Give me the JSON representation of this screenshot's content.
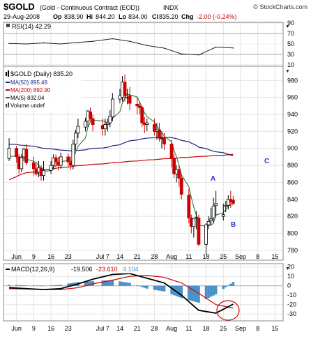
{
  "header": {
    "symbol": "$GOLD",
    "name": "(Gold - Continuous Contract (EOD))",
    "exchange": "INDX",
    "source": "© StockCharts.com",
    "date": "29-Aug-2008",
    "op_label": "Op",
    "op": "838.90",
    "hi_label": "Hi",
    "hi": "844.20",
    "lo_label": "Lo",
    "lo": "834.00",
    "cl_label": "Cl",
    "cl": "835.20",
    "chg_label": "Chg",
    "chg": "-2.00 (-0.24%)"
  },
  "rsi_panel": {
    "label": "RSI(14) 42.29",
    "ticks": [
      "90",
      "70",
      "50",
      "30",
      "10"
    ]
  },
  "price_panel": {
    "legend": [
      {
        "text": "$GOLD (Daily) 835.20",
        "color": "#000000",
        "marker": "candle"
      },
      {
        "text": "MA(50) 895.49",
        "color": "#1a237e",
        "marker": "line"
      },
      {
        "text": "MA(200) 892.90",
        "color": "#cc0000",
        "marker": "line"
      },
      {
        "text": "MA(5) 832.04",
        "color": "#207020",
        "marker": "line"
      },
      {
        "text": "Volume undef",
        "color": "#000000",
        "marker": "bars"
      }
    ],
    "annotations": [
      "A",
      "B",
      "C"
    ]
  },
  "macd_panel": {
    "label_name": "MACD(12,26,9)",
    "macd": "-19.506",
    "signal": "-23.610",
    "hist": "4.104",
    "ticks": [
      "20",
      "10",
      "0",
      "-10",
      "-20",
      "-30"
    ]
  },
  "x_axis_labels": [
    "Jun",
    "9",
    "16",
    "23",
    "Jul 7",
    "14",
    "21",
    "28",
    "Aug",
    "11",
    "18",
    "25",
    "Sep",
    "8",
    "15"
  ],
  "colors": {
    "up": "#000000",
    "down": "#cc0000",
    "ma50": "#1a237e",
    "ma200": "#cc0000",
    "ma5": "#207020",
    "hist": "#4a90c8",
    "signal": "#cc0000",
    "annot": "#2233cc"
  },
  "chart_data": [
    {
      "type": "line",
      "name": "RSI(14)",
      "x": [
        "2008-05-30",
        "2008-06-06",
        "2008-06-13",
        "2008-06-20",
        "2008-06-27",
        "2008-07-03",
        "2008-07-11",
        "2008-07-18",
        "2008-07-25",
        "2008-08-01",
        "2008-08-08",
        "2008-08-15",
        "2008-08-22",
        "2008-08-29"
      ],
      "values": [
        51,
        50,
        52,
        50,
        53,
        55,
        60,
        55,
        47,
        42,
        31,
        29,
        44,
        42.29
      ],
      "ylim": [
        10,
        90
      ],
      "levels": [
        70,
        50,
        30
      ]
    },
    {
      "type": "candlestick",
      "title": "$GOLD (Daily)",
      "ylim": [
        770,
        995
      ],
      "yticks": [
        780,
        800,
        820,
        840,
        860,
        880,
        900,
        920,
        940,
        960,
        980
      ],
      "x": [
        "2008-05-30",
        "2008-06-02",
        "2008-06-03",
        "2008-06-04",
        "2008-06-05",
        "2008-06-06",
        "2008-06-09",
        "2008-06-10",
        "2008-06-11",
        "2008-06-12",
        "2008-06-13",
        "2008-06-16",
        "2008-06-17",
        "2008-06-18",
        "2008-06-19",
        "2008-06-20",
        "2008-06-23",
        "2008-06-24",
        "2008-06-25",
        "2008-06-26",
        "2008-06-27",
        "2008-06-30",
        "2008-07-01",
        "2008-07-02",
        "2008-07-03",
        "2008-07-07",
        "2008-07-08",
        "2008-07-09",
        "2008-07-10",
        "2008-07-11",
        "2008-07-14",
        "2008-07-15",
        "2008-07-16",
        "2008-07-17",
        "2008-07-18",
        "2008-07-21",
        "2008-07-22",
        "2008-07-23",
        "2008-07-24",
        "2008-07-25",
        "2008-07-28",
        "2008-07-29",
        "2008-07-30",
        "2008-07-31",
        "2008-08-01",
        "2008-08-04",
        "2008-08-05",
        "2008-08-06",
        "2008-08-07",
        "2008-08-08",
        "2008-08-11",
        "2008-08-12",
        "2008-08-13",
        "2008-08-14",
        "2008-08-15",
        "2008-08-18",
        "2008-08-19",
        "2008-08-20",
        "2008-08-21",
        "2008-08-22",
        "2008-08-25",
        "2008-08-26",
        "2008-08-27",
        "2008-08-28",
        "2008-08-29"
      ],
      "open": [
        888,
        900,
        890,
        876,
        890,
        899,
        883,
        876,
        872,
        877,
        868,
        874,
        880,
        889,
        884,
        880,
        890,
        883,
        880,
        905,
        918,
        925,
        932,
        943,
        935,
        927,
        923,
        928,
        930,
        937,
        958,
        960,
        978,
        960,
        962,
        952,
        950,
        948,
        930,
        928,
        928,
        920,
        922,
        912,
        912,
        905,
        888,
        870,
        875,
        865,
        845,
        818,
        808,
        818,
        818,
        787,
        810,
        815,
        818,
        833,
        820,
        832,
        833,
        840,
        838.9
      ],
      "high": [
        912,
        903,
        893,
        893,
        901,
        905,
        890,
        882,
        885,
        880,
        885,
        885,
        893,
        893,
        890,
        895,
        894,
        890,
        910,
        922,
        935,
        936,
        945,
        948,
        940,
        935,
        935,
        935,
        945,
        965,
        970,
        985,
        987,
        970,
        972,
        960,
        955,
        950,
        937,
        935,
        935,
        930,
        930,
        920,
        918,
        910,
        893,
        880,
        880,
        870,
        852,
        822,
        815,
        826,
        822,
        812,
        820,
        830,
        842,
        850,
        835,
        838,
        845,
        850,
        844.2
      ],
      "low": [
        885,
        883,
        870,
        872,
        885,
        880,
        868,
        868,
        866,
        862,
        862,
        870,
        875,
        878,
        874,
        876,
        878,
        875,
        875,
        898,
        912,
        920,
        925,
        932,
        920,
        915,
        915,
        920,
        925,
        932,
        953,
        955,
        955,
        952,
        945,
        940,
        940,
        925,
        918,
        920,
        915,
        910,
        908,
        900,
        898,
        878,
        865,
        860,
        855,
        840,
        812,
        800,
        795,
        805,
        785,
        775,
        805,
        810,
        812,
        820,
        815,
        825,
        828,
        830,
        834
      ],
      "close": [
        900,
        890,
        876,
        889,
        899,
        883,
        876,
        870,
        877,
        868,
        874,
        880,
        889,
        884,
        880,
        890,
        884,
        880,
        905,
        918,
        926,
        932,
        944,
        935,
        928,
        923,
        928,
        930,
        938,
        958,
        962,
        978,
        962,
        960,
        953,
        950,
        948,
        930,
        928,
        930,
        920,
        922,
        912,
        912,
        905,
        888,
        870,
        875,
        865,
        846,
        818,
        808,
        817,
        819,
        787,
        810,
        814,
        817,
        832,
        835,
        822,
        833,
        840,
        837.2,
        835.2
      ]
    },
    {
      "type": "bar+line",
      "name": "MACD(12,26,9)",
      "x": [
        "2008-05-30",
        "2008-06-06",
        "2008-06-13",
        "2008-06-20",
        "2008-06-27",
        "2008-07-03",
        "2008-07-11",
        "2008-07-18",
        "2008-07-25",
        "2008-08-01",
        "2008-08-08",
        "2008-08-15",
        "2008-08-22",
        "2008-08-29"
      ],
      "macd": [
        -2,
        -3,
        -4,
        -3,
        2,
        7,
        12,
        13,
        8,
        3,
        -10,
        -26,
        -29,
        -19.506
      ],
      "signal": [
        -3,
        -3.5,
        -4,
        -4,
        -2,
        2,
        6,
        10,
        11,
        9,
        3,
        -8,
        -20,
        -23.61
      ],
      "histogram": [
        1,
        0.5,
        0,
        1,
        4,
        5,
        6,
        3,
        -3,
        -6,
        -13,
        -18,
        -9,
        4.104
      ],
      "ylim": [
        -35,
        22
      ]
    }
  ]
}
